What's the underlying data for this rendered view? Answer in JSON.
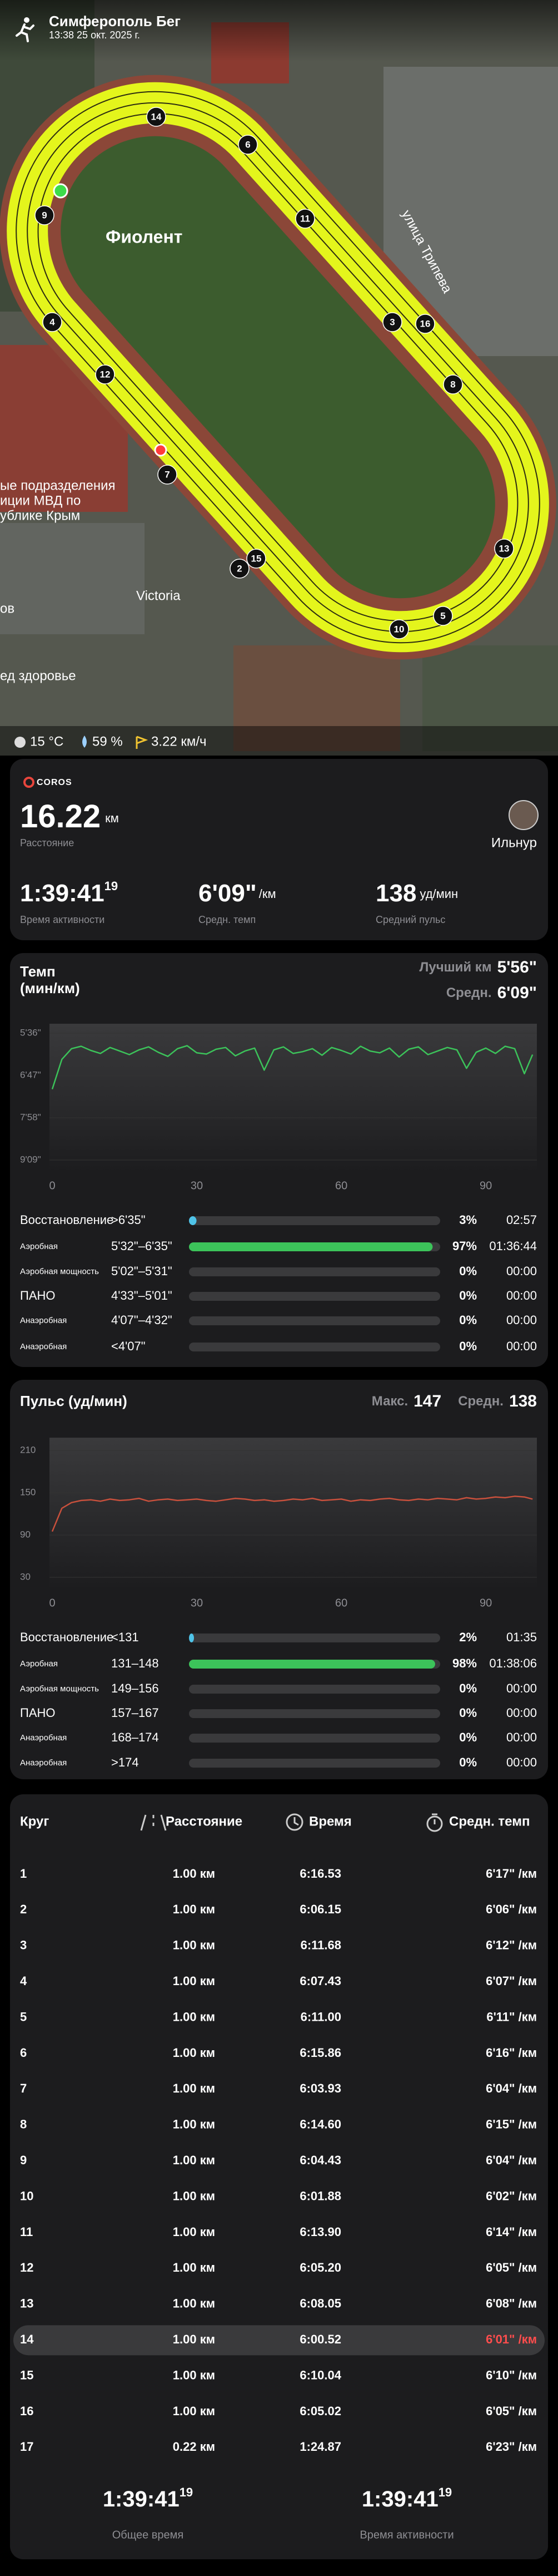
{
  "map": {
    "title": "Симферополь Бег",
    "datetime": "13:38 25 окт. 2025 г.",
    "place": "Фиолент",
    "street": "улица Трипева",
    "poi": "Victoria",
    "side_lines": [
      "ые подразделения",
      "иции МВД по",
      "ублике Крым"
    ],
    "side_a": "ов",
    "side_b": "ед здоровье",
    "markers": [
      "14",
      "6",
      "9",
      "11",
      "4",
      "3",
      "16",
      "12",
      "8",
      "7",
      "15",
      "2",
      "13",
      "5",
      "10"
    ],
    "weather": {
      "temp": "15 °C",
      "humidity": "59 %",
      "wind": "3.22 км/ч"
    }
  },
  "summary": {
    "brand": "COROS",
    "distance": "16.22",
    "distance_unit": "км",
    "distance_label": "Расстояние",
    "user": "Ильнур",
    "active_time": "1:39:41",
    "active_time_frac": "19",
    "active_time_label": "Время активности",
    "pace": "6'09\"",
    "pace_unit": "/км",
    "pace_label": "Средн. темп",
    "hr": "138",
    "hr_unit": "уд/мин",
    "hr_label": "Средний пульс"
  },
  "pace_card": {
    "title": "Темп",
    "subtitle": "(мин/км)",
    "best_label": "Лучший км",
    "best": "5'56\"",
    "avg_label": "Средн.",
    "avg": "6'09\"",
    "chart": {
      "type": "line",
      "color": "#3cc35a",
      "y_reversed": true,
      "xlim": [
        0,
        100.6
      ],
      "xticks": [
        0,
        30,
        60,
        90
      ],
      "ylim": [
        336,
        549
      ],
      "yticks": [
        {
          "value": 336,
          "label": "5'36\""
        },
        {
          "value": 407,
          "label": "6'47\""
        },
        {
          "value": 478,
          "label": "7'58\""
        },
        {
          "value": 549,
          "label": "9'09\""
        }
      ],
      "x": [
        0,
        2,
        4,
        6,
        8,
        10,
        12,
        14,
        16,
        18,
        20,
        22,
        24,
        26,
        28,
        30,
        32,
        34,
        36,
        38,
        40,
        42,
        44,
        46,
        48,
        50,
        52,
        54,
        56,
        58,
        60,
        62,
        64,
        66,
        68,
        70,
        72,
        74,
        76,
        78,
        80,
        82,
        84,
        86,
        88,
        90,
        92,
        94,
        96,
        98,
        99.7
      ],
      "values": [
        430,
        380,
        362,
        358,
        365,
        370,
        360,
        366,
        372,
        364,
        359,
        368,
        375,
        362,
        357,
        369,
        371,
        363,
        360,
        374,
        366,
        361,
        398,
        364,
        359,
        370,
        367,
        362,
        373,
        360,
        365,
        371,
        358,
        366,
        369,
        361,
        376,
        363,
        359,
        372,
        366,
        360,
        364,
        395,
        368,
        361,
        370,
        358,
        362,
        404,
        372
      ]
    },
    "zones": [
      {
        "name": "Восстановление",
        "range": ">6'35\"",
        "pct": 3,
        "pct_label": "3%",
        "time": "02:57",
        "color": "#4fc3e8",
        "big": true
      },
      {
        "name": "Аэробная",
        "range": "5'32\"–6'35\"",
        "pct": 97,
        "pct_label": "97%",
        "time": "01:36:44",
        "color": "#3cc35a",
        "big": false
      },
      {
        "name": "Аэробная мощность",
        "range": "5'02\"–5'31\"",
        "pct": 0,
        "pct_label": "0%",
        "time": "00:00",
        "color": "#f0c330",
        "big": false
      },
      {
        "name": "ПАНО",
        "range": "4'33\"–5'01\"",
        "pct": 0,
        "pct_label": "0%",
        "time": "00:00",
        "color": "#f08a30",
        "big": true
      },
      {
        "name": "Анаэробная",
        "range": "4'07\"–4'32\"",
        "pct": 0,
        "pct_label": "0%",
        "time": "00:00",
        "color": "#e8453c",
        "big": false
      },
      {
        "name": "Анаэробная",
        "range": "<4'07\"",
        "pct": 0,
        "pct_label": "0%",
        "time": "00:00",
        "color": "#b03030",
        "big": false
      }
    ]
  },
  "hr_card": {
    "title": "Пульс (уд/мин)",
    "max_label": "Макс.",
    "max": "147",
    "avg_label": "Средн.",
    "avg": "138",
    "chart": {
      "type": "line",
      "color": "#c8503c",
      "y_reversed": false,
      "xlim": [
        0,
        100.6
      ],
      "xticks": [
        0,
        30,
        60,
        90
      ],
      "ylim": [
        30,
        210
      ],
      "yticks": [
        210,
        150,
        90,
        30
      ],
      "x": [
        0,
        2,
        4,
        6,
        8,
        10,
        12,
        14,
        16,
        18,
        20,
        22,
        24,
        26,
        28,
        30,
        32,
        34,
        36,
        38,
        40,
        42,
        44,
        46,
        48,
        50,
        52,
        54,
        56,
        58,
        60,
        62,
        64,
        66,
        68,
        70,
        72,
        74,
        76,
        78,
        80,
        82,
        84,
        86,
        88,
        90,
        92,
        94,
        96,
        98,
        99.7
      ],
      "values": [
        95,
        128,
        136,
        139,
        140,
        138,
        141,
        139,
        140,
        142,
        138,
        140,
        141,
        139,
        140,
        141,
        139,
        138,
        140,
        142,
        141,
        139,
        140,
        138,
        139,
        141,
        140,
        142,
        139,
        140,
        141,
        138,
        140,
        139,
        141,
        142,
        140,
        139,
        141,
        140,
        142,
        141,
        140,
        143,
        141,
        142,
        144,
        143,
        145,
        144,
        141
      ]
    },
    "zones": [
      {
        "name": "Восстановление",
        "range": "<131",
        "pct": 2,
        "pct_label": "2%",
        "time": "01:35",
        "color": "#4fc3e8",
        "big": true
      },
      {
        "name": "Аэробная",
        "range": "131–148",
        "pct": 98,
        "pct_label": "98%",
        "time": "01:38:06",
        "color": "#3cc35a",
        "big": false
      },
      {
        "name": "Аэробная мощность",
        "range": "149–156",
        "pct": 0,
        "pct_label": "0%",
        "time": "00:00",
        "color": "#f0c330",
        "big": false
      },
      {
        "name": "ПАНО",
        "range": "157–167",
        "pct": 0,
        "pct_label": "0%",
        "time": "00:00",
        "color": "#f08a30",
        "big": true
      },
      {
        "name": "Анаэробная",
        "range": "168–174",
        "pct": 0,
        "pct_label": "0%",
        "time": "00:00",
        "color": "#e8453c",
        "big": false
      },
      {
        "name": "Анаэробная",
        "range": ">174",
        "pct": 0,
        "pct_label": "0%",
        "time": "00:00",
        "color": "#b03030",
        "big": false
      }
    ]
  },
  "laps": {
    "headers": [
      "Круг",
      "Расстояние",
      "Время",
      "Средн. темп"
    ],
    "rows": [
      {
        "n": "1",
        "distance": "1.00 км",
        "time": "6:16.53",
        "pace": "6'17\" /км",
        "highlight": false
      },
      {
        "n": "2",
        "distance": "1.00 км",
        "time": "6:06.15",
        "pace": "6'06\" /км",
        "highlight": false
      },
      {
        "n": "3",
        "distance": "1.00 км",
        "time": "6:11.68",
        "pace": "6'12\" /км",
        "highlight": false
      },
      {
        "n": "4",
        "distance": "1.00 км",
        "time": "6:07.43",
        "pace": "6'07\" /км",
        "highlight": false
      },
      {
        "n": "5",
        "distance": "1.00 км",
        "time": "6:11.00",
        "pace": "6'11\" /км",
        "highlight": false
      },
      {
        "n": "6",
        "distance": "1.00 км",
        "time": "6:15.86",
        "pace": "6'16\" /км",
        "highlight": false
      },
      {
        "n": "7",
        "distance": "1.00 км",
        "time": "6:03.93",
        "pace": "6'04\" /км",
        "highlight": false
      },
      {
        "n": "8",
        "distance": "1.00 км",
        "time": "6:14.60",
        "pace": "6'15\" /км",
        "highlight": false
      },
      {
        "n": "9",
        "distance": "1.00 км",
        "time": "6:04.43",
        "pace": "6'04\" /км",
        "highlight": false
      },
      {
        "n": "10",
        "distance": "1.00 км",
        "time": "6:01.88",
        "pace": "6'02\" /км",
        "highlight": false
      },
      {
        "n": "11",
        "distance": "1.00 км",
        "time": "6:13.90",
        "pace": "6'14\" /км",
        "highlight": false
      },
      {
        "n": "12",
        "distance": "1.00 км",
        "time": "6:05.20",
        "pace": "6'05\" /км",
        "highlight": false
      },
      {
        "n": "13",
        "distance": "1.00 км",
        "time": "6:08.05",
        "pace": "6'08\" /км",
        "highlight": false
      },
      {
        "n": "14",
        "distance": "1.00 км",
        "time": "6:00.52",
        "pace": "6'01\" /км",
        "highlight": true
      },
      {
        "n": "15",
        "distance": "1.00 км",
        "time": "6:10.04",
        "pace": "6'10\" /км",
        "highlight": false
      },
      {
        "n": "16",
        "distance": "1.00 км",
        "time": "6:05.02",
        "pace": "6'05\" /км",
        "highlight": false
      },
      {
        "n": "17",
        "distance": "0.22 км",
        "time": "1:24.87",
        "pace": "6'23\" /км",
        "highlight": false
      }
    ],
    "total_time": "1:39:41",
    "total_frac": "19",
    "total_label": "Общее время",
    "active_time": "1:39:41",
    "active_frac": "19",
    "active_label": "Время активности"
  }
}
